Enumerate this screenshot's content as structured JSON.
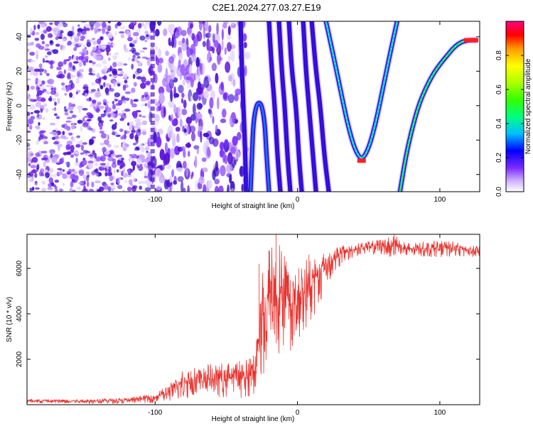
{
  "title": "C2E1.2024.277.03.27.E19",
  "chart_data": [
    {
      "type": "heatmap",
      "xlabel": "Height of straight line (km)",
      "ylabel": "Frequency (Hz)",
      "xlim": [
        -190,
        128
      ],
      "ylim": [
        -50,
        49
      ],
      "x_ticks": [
        -100,
        0,
        100
      ],
      "x_tick_labels": [
        "-100",
        "0",
        "100"
      ],
      "y_ticks": [
        -40,
        -20,
        0,
        20,
        40
      ],
      "y_tick_labels": [
        "-40",
        "-20",
        "0",
        "20",
        "40"
      ],
      "colorbar": {
        "label": "Normalized spectral amplitude",
        "range": [
          0,
          1
        ],
        "ticks": [
          0.0,
          0.2,
          0.4,
          0.6,
          0.8
        ],
        "tick_labels": [
          "0.0",
          "0.2",
          "0.4",
          "0.6",
          "0.8"
        ]
      },
      "curves": [
        {
          "points": [
            [
              -40,
              49
            ],
            [
              -39,
              20
            ],
            [
              -38,
              0
            ],
            [
              -37,
              -20
            ],
            [
              -36,
              -50
            ]
          ],
          "amplitude": 0.1
        },
        {
          "points": [
            [
              -33,
              -50
            ],
            [
              -32,
              -30
            ],
            [
              -31,
              -10
            ],
            [
              -29,
              0
            ],
            [
              -27,
              2
            ],
            [
              -25,
              0
            ],
            [
              -23,
              -10
            ],
            [
              -22,
              -25
            ],
            [
              -20,
              -50
            ]
          ],
          "amplitude": 0.3
        },
        {
          "points": [
            [
              -20,
              49
            ],
            [
              -18,
              20
            ],
            [
              -16,
              0
            ],
            [
              -14,
              -30
            ],
            [
              -12,
              -50
            ]
          ],
          "amplitude": 0.1
        },
        {
          "points": [
            [
              -13,
              49
            ],
            [
              -11,
              20
            ],
            [
              -9,
              0
            ],
            [
              -7,
              -30
            ],
            [
              -5,
              -50
            ]
          ],
          "amplitude": 0.1
        },
        {
          "points": [
            [
              -6,
              49
            ],
            [
              -4,
              20
            ],
            [
              -1,
              0
            ],
            [
              1,
              -30
            ],
            [
              3,
              -50
            ]
          ],
          "amplitude": 0.1
        },
        {
          "points": [
            [
              4,
              49
            ],
            [
              6,
              20
            ],
            [
              8,
              0
            ],
            [
              11,
              -30
            ],
            [
              13,
              -50
            ]
          ],
          "amplitude": 0.1
        },
        {
          "points": [
            [
              10,
              49
            ],
            [
              13,
              20
            ],
            [
              16,
              0
            ],
            [
              19,
              -30
            ],
            [
              22,
              -50
            ]
          ],
          "amplitude": 0.12
        },
        {
          "points": [
            [
              20,
              49
            ],
            [
              25,
              30
            ],
            [
              30,
              10
            ],
            [
              35,
              -10
            ],
            [
              40,
              -25
            ],
            [
              45,
              -32
            ],
            [
              50,
              -25
            ],
            [
              55,
              -10
            ],
            [
              60,
              10
            ],
            [
              65,
              30
            ],
            [
              70,
              49
            ]
          ],
          "amplitude": 0.45
        },
        {
          "points": [
            [
              72,
              -50
            ],
            [
              76,
              -30
            ],
            [
              80,
              -15
            ],
            [
              85,
              0
            ],
            [
              90,
              10
            ],
            [
              95,
              18
            ],
            [
              100,
              24
            ],
            [
              105,
              29
            ],
            [
              110,
              34
            ],
            [
              115,
              37
            ],
            [
              120,
              38
            ],
            [
              125,
              38
            ]
          ],
          "amplitude": 0.55
        }
      ]
    },
    {
      "type": "line",
      "xlabel": "Height of straight line (km)",
      "ylabel": "SNR (10 * v/v)",
      "xlim": [
        -190,
        128
      ],
      "ylim": [
        0,
        7500
      ],
      "x_ticks": [
        -100,
        0,
        100
      ],
      "x_tick_labels": [
        "-100",
        "0",
        "100"
      ],
      "y_ticks": [
        2000,
        4000,
        6000
      ],
      "y_tick_labels": [
        "2000",
        "4000",
        "6000"
      ],
      "series": [
        {
          "color": "#e8322d",
          "envelope": {
            "x": [
              -190,
              -150,
              -120,
              -100,
              -90,
              -80,
              -70,
              -60,
              -50,
              -40,
              -35,
              -30,
              -25,
              -20,
              -15,
              -10,
              -5,
              0,
              5,
              10,
              15,
              20,
              30,
              40,
              50,
              60,
              65,
              70,
              75,
              80,
              90,
              100,
              110,
              120,
              128
            ],
            "lower": [
              50,
              50,
              50,
              80,
              150,
              250,
              300,
              350,
              300,
              250,
              250,
              400,
              1000,
              1600,
              1800,
              2200,
              2300,
              2800,
              3300,
              3700,
              4300,
              5200,
              6100,
              6500,
              6600,
              6600,
              6500,
              6400,
              6400,
              6500,
              6500,
              6500,
              6500,
              6500,
              6500
            ],
            "upper": [
              250,
              250,
              300,
              500,
              900,
              1600,
              1700,
              1800,
              1900,
              2000,
              2000,
              2500,
              6200,
              7000,
              7500,
              6800,
              6000,
              5900,
              6500,
              6600,
              6700,
              6800,
              7000,
              7100,
              7200,
              7300,
              7400,
              7500,
              7200,
              7100,
              7200,
              7250,
              7200,
              7000,
              7000
            ]
          },
          "spikes": [
            [
              -27,
              6200
            ],
            [
              -20,
              6800
            ],
            [
              -15,
              7500
            ],
            [
              -8,
              6300
            ],
            [
              1,
              6000
            ],
            [
              8,
              6600
            ],
            [
              68,
              7500
            ]
          ]
        }
      ]
    }
  ]
}
